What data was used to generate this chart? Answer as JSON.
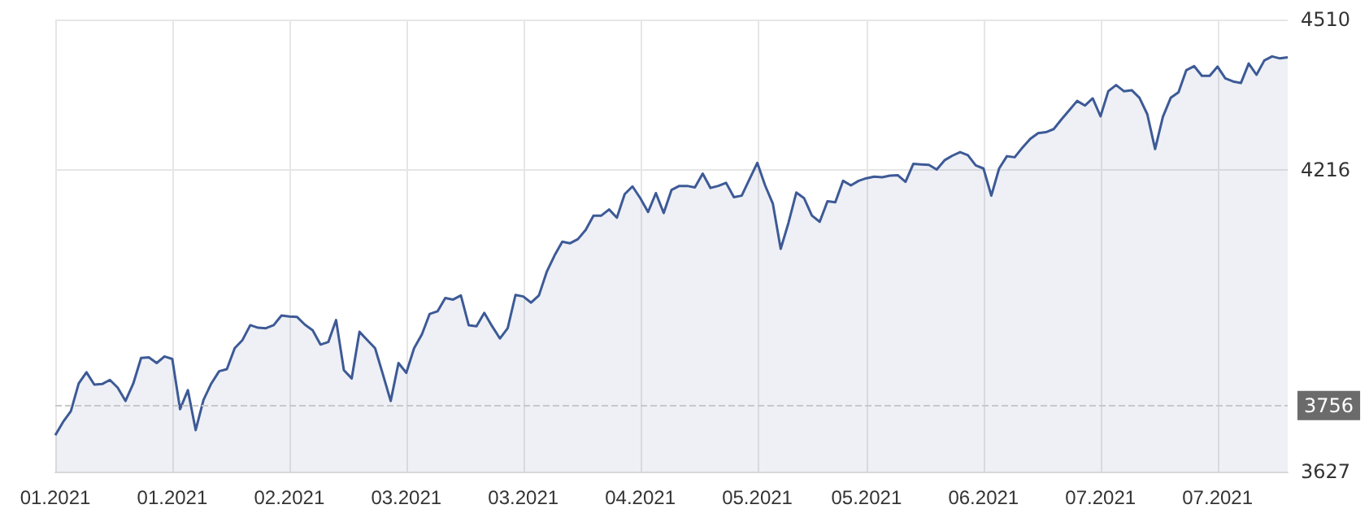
{
  "chart_data": {
    "type": "area",
    "categories": [
      "01.2021",
      null,
      null,
      null,
      null,
      null,
      null,
      null,
      null,
      null,
      null,
      null,
      null,
      null,
      null,
      "01.2021",
      null,
      null,
      null,
      null,
      null,
      null,
      null,
      null,
      null,
      null,
      null,
      null,
      null,
      null,
      "02.2021",
      null,
      null,
      null,
      null,
      null,
      null,
      null,
      null,
      null,
      null,
      null,
      null,
      null,
      null,
      "03.2021",
      null,
      null,
      null,
      null,
      null,
      null,
      null,
      null,
      null,
      null,
      null,
      null,
      null,
      null,
      "03.2021",
      null,
      null,
      null,
      null,
      null,
      null,
      null,
      null,
      null,
      null,
      null,
      null,
      null,
      null,
      "04.2021",
      null,
      null,
      null,
      null,
      null,
      null,
      null,
      null,
      null,
      null,
      null,
      null,
      null,
      null,
      "05.2021",
      null,
      null,
      null,
      null,
      null,
      null,
      null,
      null,
      null,
      null,
      null,
      null,
      null,
      "05.2021",
      null,
      null,
      null,
      null,
      null,
      null,
      null,
      null,
      null,
      null,
      null,
      null,
      null,
      null,
      "06.2021",
      null,
      null,
      null,
      null,
      null,
      null,
      null,
      null,
      null,
      null,
      null,
      null,
      null,
      null,
      "07.2021",
      null,
      null,
      null,
      null,
      null,
      null,
      null,
      null,
      null,
      null,
      null,
      null,
      null,
      null,
      "07.2021",
      null,
      null,
      null,
      null,
      null,
      null,
      null,
      null,
      null
    ],
    "series": [
      {
        "color": "#3d5a96",
        "values": [
          3698,
          3724,
          3745,
          3799,
          3821,
          3797,
          3798,
          3806,
          3791,
          3765,
          3799,
          3849,
          3850,
          3839,
          3852,
          3847,
          3749,
          3786,
          3708,
          3767,
          3799,
          3823,
          3827,
          3868,
          3884,
          3913,
          3908,
          3907,
          3913,
          3932,
          3930,
          3929,
          3914,
          3903,
          3875,
          3880,
          3923,
          3825,
          3809,
          3900,
          3884,
          3868,
          3817,
          3765,
          3839,
          3820,
          3868,
          3895,
          3935,
          3940,
          3966,
          3963,
          3971,
          3913,
          3911,
          3937,
          3911,
          3887,
          3907,
          3972,
          3969,
          3957,
          3971,
          4017,
          4049,
          4076,
          4073,
          4081,
          4099,
          4127,
          4127,
          4139,
          4123,
          4169,
          4184,
          4161,
          4134,
          4171,
          4132,
          4177,
          4185,
          4185,
          4182,
          4209,
          4181,
          4185,
          4191,
          4163,
          4166,
          4198,
          4230,
          4186,
          4150,
          4062,
          4113,
          4172,
          4161,
          4127,
          4115,
          4155,
          4153,
          4195,
          4186,
          4195,
          4200,
          4203,
          4202,
          4205,
          4206,
          4193,
          4228,
          4227,
          4226,
          4217,
          4235,
          4244,
          4251,
          4245,
          4225,
          4219,
          4166,
          4219,
          4243,
          4241,
          4260,
          4277,
          4288,
          4290,
          4296,
          4315,
          4333,
          4351,
          4342,
          4356,
          4321,
          4370,
          4382,
          4370,
          4372,
          4357,
          4325,
          4257,
          4320,
          4357,
          4368,
          4411,
          4419,
          4400,
          4400,
          4418,
          4395,
          4389,
          4386,
          4424,
          4402,
          4430,
          4438,
          4434,
          4436
        ]
      }
    ],
    "ylim": [
      3627,
      4510
    ],
    "yticks": [
      3627,
      4216,
      4510
    ],
    "grid": true,
    "marker": "none",
    "ref_lines": [
      {
        "axis": "y",
        "value": 3756,
        "label": "3756",
        "color": "#c8c8c8",
        "line_style": "dashed"
      }
    ]
  }
}
